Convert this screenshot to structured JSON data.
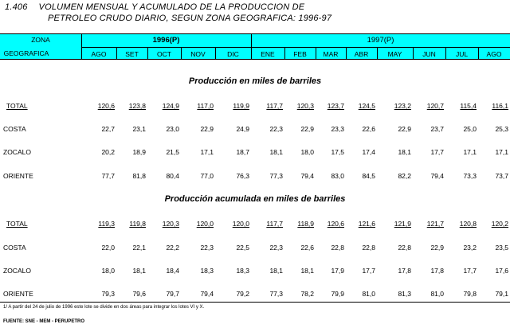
{
  "title": {
    "number": "1.406",
    "line1": "VOLUMEN MENSUAL Y ACUMULADO DE LA PRODUCCION DE",
    "line2": "PETROLEO CRUDO DIARIO, SEGUN ZONA GEOGRAFICA: 1996-97"
  },
  "header": {
    "zona1": "ZONA",
    "zona2": "GEOGRAFICA",
    "year1996": "1996(P)",
    "year1997": "1997(P)",
    "months": [
      "AGO",
      "SET",
      "OCT",
      "NOV",
      "DIC",
      "ENE",
      "FEB",
      "MAR",
      "ABR",
      "MAY",
      "JUN",
      "JUL",
      "AGO"
    ]
  },
  "sections": [
    {
      "title": "Producción en miles de barriles",
      "rows": [
        {
          "label": "TOTAL",
          "values": [
            "120,6",
            "123,8",
            "124,9",
            "117,0",
            "119,9",
            "117,7",
            "120,3",
            "123,7",
            "124,5",
            "123,2",
            "120,7",
            "115,4",
            "116,1"
          ]
        },
        {
          "label": "COSTA",
          "values": [
            "22,7",
            "23,1",
            "23,0",
            "22,9",
            "24,9",
            "22,3",
            "22,9",
            "23,3",
            "22,6",
            "22,9",
            "23,7",
            "25,0",
            "25,3"
          ]
        },
        {
          "label": "ZOCALO",
          "values": [
            "20,2",
            "18,9",
            "21,5",
            "17,1",
            "18,7",
            "18,1",
            "18,0",
            "17,5",
            "17,4",
            "18,1",
            "17,7",
            "17,1",
            "17,1"
          ]
        },
        {
          "label": "ORIENTE",
          "values": [
            "77,7",
            "81,8",
            "80,4",
            "77,0",
            "76,3",
            "77,3",
            "79,4",
            "83,0",
            "84,5",
            "82,2",
            "79,4",
            "73,3",
            "73,7"
          ]
        }
      ]
    },
    {
      "title": "Producción acumulada en miles de barriles",
      "rows": [
        {
          "label": "TOTAL",
          "values": [
            "119,3",
            "119,8",
            "120,3",
            "120,0",
            "120,0",
            "117,7",
            "118,9",
            "120,6",
            "121,6",
            "121,9",
            "121,7",
            "120,8",
            "120,2"
          ]
        },
        {
          "label": "COSTA",
          "values": [
            "22,0",
            "22,1",
            "22,2",
            "22,3",
            "22,5",
            "22,3",
            "22,6",
            "22,8",
            "22,8",
            "22,8",
            "22,9",
            "23,2",
            "23,5"
          ]
        },
        {
          "label": "ZOCALO",
          "values": [
            "18,0",
            "18,1",
            "18,4",
            "18,3",
            "18,3",
            "18,1",
            "18,1",
            "17,9",
            "17,7",
            "17,8",
            "17,8",
            "17,7",
            "17,6"
          ]
        },
        {
          "label": "ORIENTE",
          "values": [
            "79,3",
            "79,6",
            "79,7",
            "79,4",
            "79,2",
            "77,3",
            "78,2",
            "79,9",
            "81,0",
            "81,3",
            "81,0",
            "79,8",
            "79,1"
          ]
        }
      ]
    }
  ],
  "footnote": "1/ A partir del 24 de julio de 1996 este lote se divide en dos áreas para integrar los lotes VI y X.",
  "source": "FUENTE: SNE - MEM - PERUPETRO"
}
